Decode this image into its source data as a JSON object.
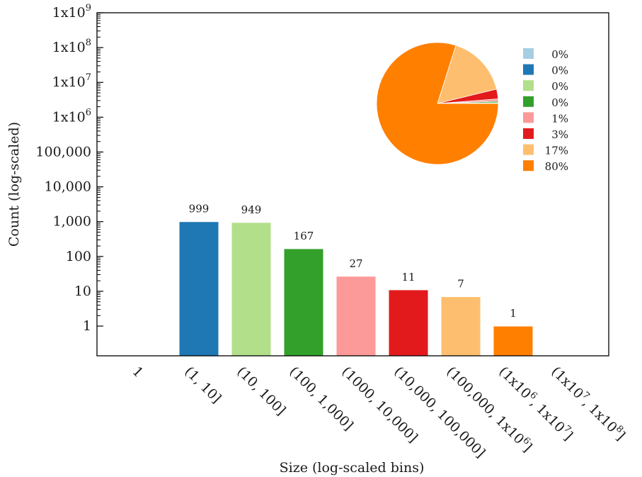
{
  "chart_data": {
    "type": "bar",
    "xlabel": "Size (log-scaled bins)",
    "ylabel": "Count (log-scaled)",
    "yscale": "log",
    "ylim": [
      0.14,
      1000000000
    ],
    "grid": false,
    "categories": [
      "1",
      "(1, 10]",
      "(10, 100]",
      "(100, 1,000]",
      "(1000, 10,000]",
      "(10,000, 100,000]",
      "(100,000, 1x10^6]",
      "(1x10^6, 1x10^7]",
      "(1x10^7, 1x10^8]"
    ],
    "category_labels": [
      {
        "pre": "1",
        "sup1": "",
        "mid": "",
        "sup2": "",
        "post": ""
      },
      {
        "pre": "(1, 10]",
        "sup1": "",
        "mid": "",
        "sup2": "",
        "post": ""
      },
      {
        "pre": "(10, 100]",
        "sup1": "",
        "mid": "",
        "sup2": "",
        "post": ""
      },
      {
        "pre": "(100, 1,000]",
        "sup1": "",
        "mid": "",
        "sup2": "",
        "post": ""
      },
      {
        "pre": "(1000, 10,000]",
        "sup1": "",
        "mid": "",
        "sup2": "",
        "post": ""
      },
      {
        "pre": "(10,000, 100,000]",
        "sup1": "",
        "mid": "",
        "sup2": "",
        "post": ""
      },
      {
        "pre": "(100,000, 1x10",
        "sup1": "6",
        "mid": "]",
        "sup2": "",
        "post": ""
      },
      {
        "pre": "(1x10",
        "sup1": "6",
        "mid": ", 1x10",
        "sup2": "7",
        "post": "]"
      },
      {
        "pre": "(1x10",
        "sup1": "7",
        "mid": ", 1x10",
        "sup2": "8",
        "post": "]"
      }
    ],
    "values": [
      0,
      999,
      949,
      167,
      27,
      11,
      7,
      1,
      0
    ],
    "data_labels": [
      "",
      "999",
      "949",
      "167",
      "27",
      "11",
      "7",
      "1",
      ""
    ],
    "colors": [
      "#a6cee3",
      "#1f78b4",
      "#b2df8a",
      "#33a02c",
      "#fb9a99",
      "#e31a1c",
      "#fdbf6f",
      "#ff7f00",
      "#ff7f00"
    ],
    "yticks": [
      {
        "value": 1,
        "base": "1",
        "exp": ""
      },
      {
        "value": 10,
        "base": "10",
        "exp": ""
      },
      {
        "value": 100,
        "base": "100",
        "exp": ""
      },
      {
        "value": 1000,
        "base": "1,000",
        "exp": ""
      },
      {
        "value": 10000,
        "base": "10,000",
        "exp": ""
      },
      {
        "value": 100000,
        "base": "100,000",
        "exp": ""
      },
      {
        "value": 1000000,
        "base": "1x10",
        "exp": "6"
      },
      {
        "value": 10000000,
        "base": "1x10",
        "exp": "7"
      },
      {
        "value": 100000000,
        "base": "1x10",
        "exp": "8"
      },
      {
        "value": 1000000000,
        "base": "1x10",
        "exp": "9"
      }
    ],
    "inset_pie": {
      "type": "pie",
      "slices": [
        {
          "label": "0%",
          "value": 0.0,
          "color": "#a6cee3"
        },
        {
          "label": "0%",
          "value": 0.0,
          "color": "#1f78b4"
        },
        {
          "label": "0%",
          "value": 0.2,
          "color": "#b2df8a"
        },
        {
          "label": "0%",
          "value": 0.4,
          "color": "#33a02c"
        },
        {
          "label": "1%",
          "value": 0.6,
          "color": "#fb9a99"
        },
        {
          "label": "3%",
          "value": 2.6,
          "color": "#e31a1c"
        },
        {
          "label": "17%",
          "value": 16.3,
          "color": "#fdbf6f"
        },
        {
          "label": "80%",
          "value": 79.9,
          "color": "#ff7f00"
        }
      ],
      "legend_position": "right"
    }
  }
}
